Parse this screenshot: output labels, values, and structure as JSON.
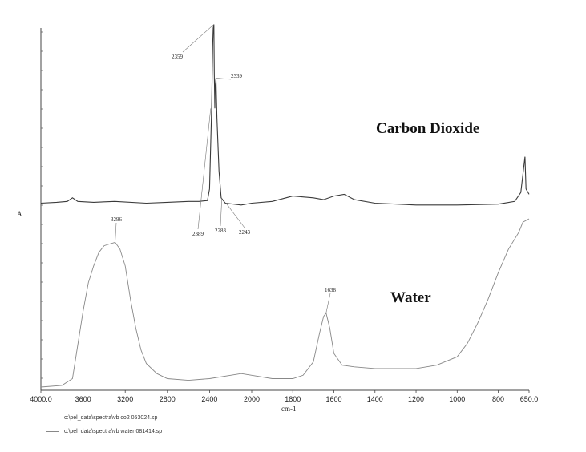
{
  "chart_data": {
    "type": "line",
    "xlabel": "cm-1",
    "ylabel": "A",
    "xlim": [
      4000,
      650
    ],
    "x_ticks": [
      "4000.0",
      "3600",
      "3200",
      "2800",
      "2400",
      "2000",
      "1800",
      "1600",
      "1400",
      "1200",
      "1000",
      "800",
      "650.0"
    ],
    "grid": false,
    "series": [
      {
        "name": "c:\\pel_data\\spectra\\vb co2 053024.sp",
        "annotation": "Carbon Dioxide",
        "points": [
          [
            4000,
            0.02
          ],
          [
            3850,
            0.025
          ],
          [
            3750,
            0.03
          ],
          [
            3700,
            0.05
          ],
          [
            3650,
            0.03
          ],
          [
            3500,
            0.025
          ],
          [
            3300,
            0.03
          ],
          [
            3000,
            0.02
          ],
          [
            2800,
            0.025
          ],
          [
            2600,
            0.03
          ],
          [
            2500,
            0.03
          ],
          [
            2420,
            0.035
          ],
          [
            2400,
            0.1
          ],
          [
            2380,
            0.55
          ],
          [
            2370,
            0.9
          ],
          [
            2365,
            1.0
          ],
          [
            2359,
            1.02
          ],
          [
            2355,
            0.75
          ],
          [
            2350,
            0.55
          ],
          [
            2345,
            0.68
          ],
          [
            2339,
            0.72
          ],
          [
            2330,
            0.5
          ],
          [
            2310,
            0.2
          ],
          [
            2290,
            0.05
          ],
          [
            2250,
            0.02
          ],
          [
            2100,
            0.01
          ],
          [
            2000,
            0.02
          ],
          [
            1900,
            0.03
          ],
          [
            1800,
            0.06
          ],
          [
            1700,
            0.05
          ],
          [
            1650,
            0.04
          ],
          [
            1600,
            0.06
          ],
          [
            1550,
            0.07
          ],
          [
            1500,
            0.04
          ],
          [
            1400,
            0.02
          ],
          [
            1200,
            0.01
          ],
          [
            1000,
            0.01
          ],
          [
            800,
            0.015
          ],
          [
            720,
            0.03
          ],
          [
            690,
            0.08
          ],
          [
            670,
            0.28
          ],
          [
            665,
            0.1
          ],
          [
            650,
            0.07
          ]
        ],
        "peak_labels": [
          {
            "x": 2359,
            "label": "2359"
          },
          {
            "x": 2339,
            "label": "2339"
          },
          {
            "x": 2389,
            "label": "2389"
          },
          {
            "x": 2283,
            "label": "2283"
          },
          {
            "x": 2243,
            "label": "2243"
          }
        ]
      },
      {
        "name": "c:\\pel_data\\spectra\\vb water 081414.sp",
        "annotation": "Water",
        "points": [
          [
            4000,
            0.0
          ],
          [
            3800,
            0.01
          ],
          [
            3700,
            0.05
          ],
          [
            3650,
            0.25
          ],
          [
            3600,
            0.45
          ],
          [
            3550,
            0.62
          ],
          [
            3500,
            0.72
          ],
          [
            3450,
            0.8
          ],
          [
            3400,
            0.84
          ],
          [
            3350,
            0.85
          ],
          [
            3296,
            0.86
          ],
          [
            3250,
            0.82
          ],
          [
            3200,
            0.72
          ],
          [
            3150,
            0.52
          ],
          [
            3100,
            0.35
          ],
          [
            3050,
            0.22
          ],
          [
            3000,
            0.14
          ],
          [
            2900,
            0.08
          ],
          [
            2800,
            0.05
          ],
          [
            2600,
            0.04
          ],
          [
            2400,
            0.05
          ],
          [
            2200,
            0.07
          ],
          [
            2100,
            0.08
          ],
          [
            2000,
            0.07
          ],
          [
            1900,
            0.05
          ],
          [
            1800,
            0.05
          ],
          [
            1750,
            0.07
          ],
          [
            1700,
            0.15
          ],
          [
            1670,
            0.32
          ],
          [
            1650,
            0.42
          ],
          [
            1638,
            0.44
          ],
          [
            1620,
            0.35
          ],
          [
            1600,
            0.2
          ],
          [
            1560,
            0.13
          ],
          [
            1500,
            0.12
          ],
          [
            1400,
            0.11
          ],
          [
            1200,
            0.11
          ],
          [
            1100,
            0.13
          ],
          [
            1000,
            0.18
          ],
          [
            950,
            0.26
          ],
          [
            900,
            0.38
          ],
          [
            850,
            0.52
          ],
          [
            800,
            0.68
          ],
          [
            750,
            0.82
          ],
          [
            700,
            0.92
          ],
          [
            680,
            0.98
          ],
          [
            650,
            1.0
          ]
        ],
        "peak_labels": [
          {
            "x": 3296,
            "label": "3296"
          },
          {
            "x": 1638,
            "label": "1638"
          }
        ]
      }
    ]
  }
}
